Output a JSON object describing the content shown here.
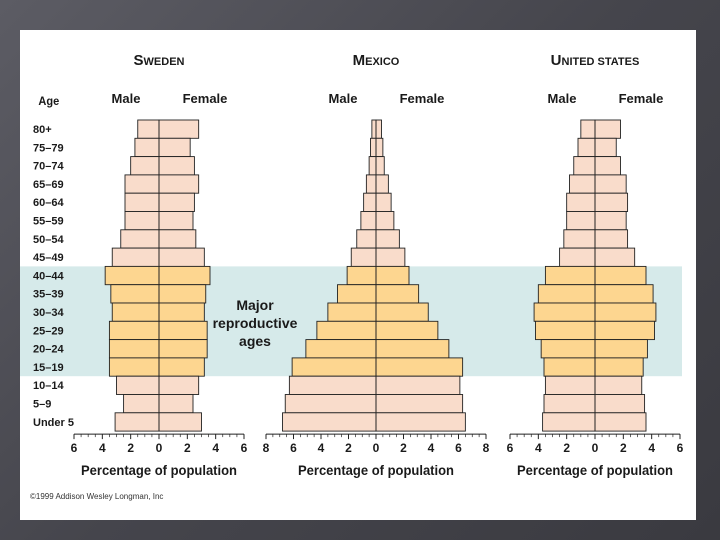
{
  "chart_data": {
    "type": "population-pyramid",
    "x_tick_labels": [
      "6",
      "4",
      "2",
      "0",
      "2",
      "4",
      "6"
    ],
    "mexico_x_tick_labels": [
      "8",
      "6",
      "4",
      "2",
      "0",
      "2",
      "4",
      "6",
      "8"
    ],
    "age_axis_label": "Age",
    "age_groups": [
      "80+",
      "75–79",
      "70–74",
      "65–69",
      "60–64",
      "55–59",
      "50–54",
      "45–49",
      "40–44",
      "35–39",
      "30–34",
      "25–29",
      "20–24",
      "15–19",
      "10–14",
      "5–9",
      "Under 5"
    ],
    "highlight": {
      "from": "40–44",
      "to": "15–19",
      "label_lines": [
        "Major",
        "reproductive",
        "ages"
      ]
    },
    "panels": [
      {
        "country": "Sweden",
        "title_big": "S",
        "title_small": "WEDEN",
        "male_label": "Male",
        "female_label": "Female",
        "xlabel": "Percentage of population",
        "xlim": [
          -6,
          6
        ],
        "male": [
          1.5,
          1.7,
          2.0,
          2.4,
          2.4,
          2.4,
          2.7,
          3.3,
          3.8,
          3.4,
          3.3,
          3.5,
          3.5,
          3.5,
          3.0,
          2.5,
          3.1
        ],
        "female": [
          2.8,
          2.2,
          2.5,
          2.8,
          2.5,
          2.4,
          2.6,
          3.2,
          3.6,
          3.3,
          3.2,
          3.4,
          3.4,
          3.2,
          2.8,
          2.4,
          3.0
        ]
      },
      {
        "country": "Mexico",
        "title_big": "M",
        "title_small": "EXICO",
        "male_label": "Male",
        "female_label": "Female",
        "xlabel": "Percentage of population",
        "xlim": [
          -8,
          8
        ],
        "male": [
          0.3,
          0.4,
          0.5,
          0.7,
          0.9,
          1.1,
          1.4,
          1.8,
          2.1,
          2.8,
          3.5,
          4.3,
          5.1,
          6.1,
          6.3,
          6.6,
          6.8
        ],
        "female": [
          0.4,
          0.5,
          0.6,
          0.9,
          1.1,
          1.3,
          1.7,
          2.1,
          2.4,
          3.1,
          3.8,
          4.5,
          5.3,
          6.3,
          6.1,
          6.3,
          6.5
        ]
      },
      {
        "country": "United States",
        "title_big": "U",
        "title_small": "NITED STATES",
        "male_label": "Male",
        "female_label": "Female",
        "xlabel": "Percentage of population",
        "xlim": [
          -6,
          6
        ],
        "male": [
          1.0,
          1.2,
          1.5,
          1.8,
          2.0,
          2.0,
          2.2,
          2.5,
          3.5,
          4.0,
          4.3,
          4.2,
          3.8,
          3.6,
          3.5,
          3.6,
          3.7
        ],
        "female": [
          1.8,
          1.5,
          1.8,
          2.2,
          2.3,
          2.2,
          2.3,
          2.8,
          3.6,
          4.1,
          4.3,
          4.2,
          3.7,
          3.4,
          3.3,
          3.5,
          3.6
        ]
      }
    ]
  },
  "credit": "©1999 Addison Wesley Longman, Inc"
}
